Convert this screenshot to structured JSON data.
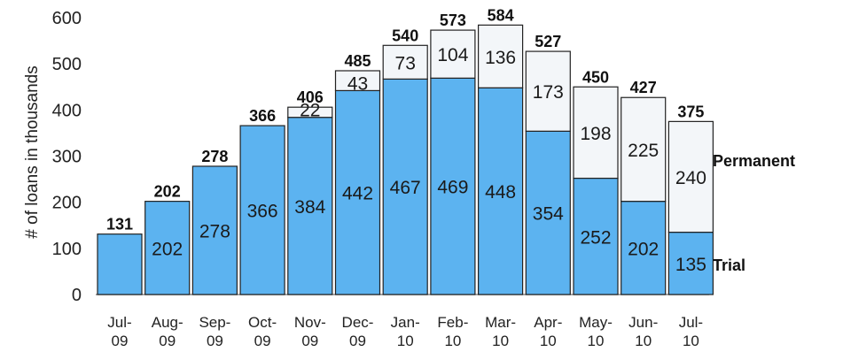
{
  "chart_data": {
    "type": "bar",
    "stacked": true,
    "title": "",
    "xlabel": "",
    "ylabel": "# of loans in thousands",
    "ylim": [
      0,
      600
    ],
    "yticks": [
      0,
      100,
      200,
      300,
      400,
      500,
      600
    ],
    "grid": false,
    "categories": [
      {
        "line1": "Jul-",
        "line2": "09"
      },
      {
        "line1": "Aug-",
        "line2": "09"
      },
      {
        "line1": "Sep-",
        "line2": "09"
      },
      {
        "line1": "Oct-",
        "line2": "09"
      },
      {
        "line1": "Nov-",
        "line2": "09"
      },
      {
        "line1": "Dec-",
        "line2": "09"
      },
      {
        "line1": "Jan-",
        "line2": "10"
      },
      {
        "line1": "Feb-",
        "line2": "10"
      },
      {
        "line1": "Mar-",
        "line2": "10"
      },
      {
        "line1": "Apr-",
        "line2": "10"
      },
      {
        "line1": "May-",
        "line2": "10"
      },
      {
        "line1": "Jun-",
        "line2": "10"
      },
      {
        "line1": "Jul-",
        "line2": "10"
      }
    ],
    "series": [
      {
        "name": "Trial",
        "color": "#5cb3f0",
        "values": [
          131,
          202,
          278,
          366,
          384,
          442,
          467,
          469,
          448,
          354,
          252,
          202,
          135
        ],
        "labels": [
          "",
          "202",
          "278",
          "366",
          "384",
          "442",
          "467",
          "469",
          "448",
          "354",
          "252",
          "202",
          "135"
        ]
      },
      {
        "name": "Permanent",
        "color": "#f3f6f9",
        "values": [
          0,
          0,
          0,
          0,
          22,
          43,
          73,
          104,
          136,
          173,
          198,
          225,
          240
        ],
        "labels": [
          "",
          "",
          "",
          "",
          "22",
          "43",
          "73",
          "104",
          "136",
          "173",
          "198",
          "225",
          "240"
        ]
      }
    ],
    "totals": [
      "131",
      "202",
      "278",
      "366",
      "406",
      "485",
      "540",
      "573",
      "584",
      "527",
      "450",
      "427",
      "375"
    ],
    "legend_placement": "right (labels beside last bar)"
  }
}
